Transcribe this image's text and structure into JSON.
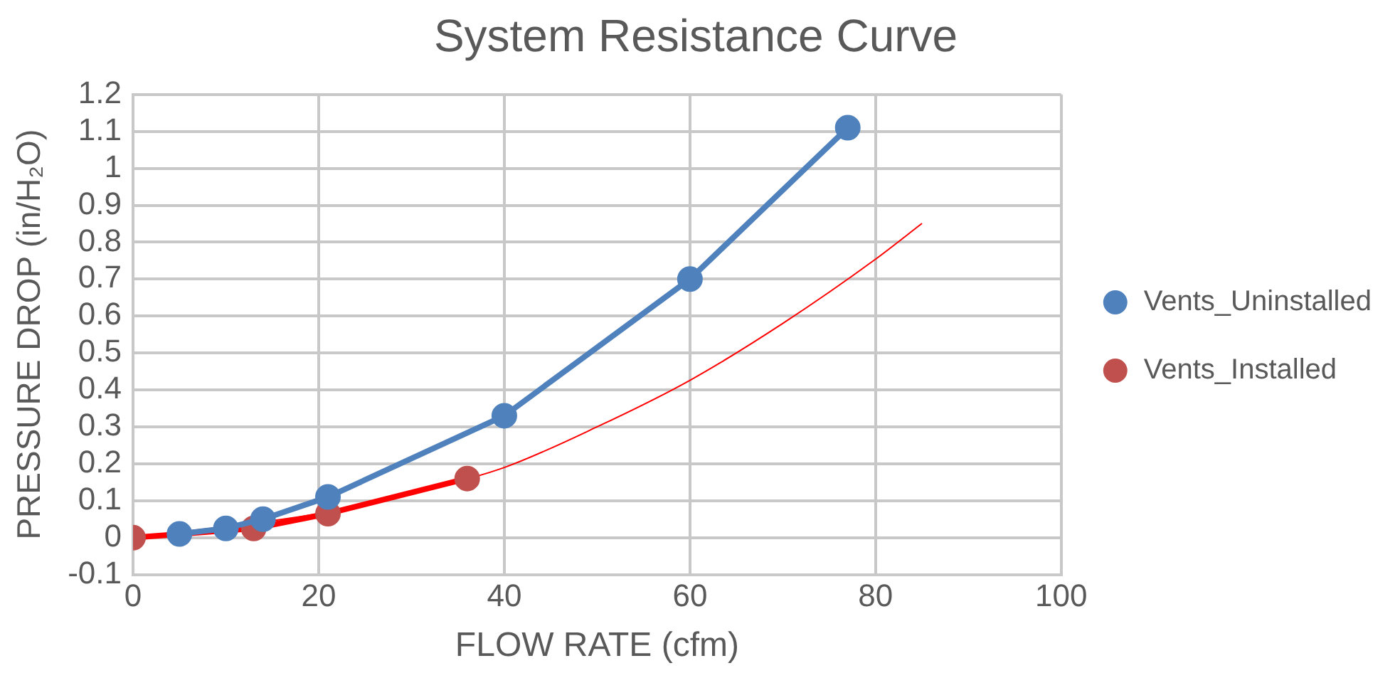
{
  "chart_data": {
    "type": "line",
    "title": "System Resistance Curve",
    "xlabel": "FLOW RATE (cfm)",
    "ylabel": "PRESSURE DROP (in/H₂O)",
    "xlim": [
      0,
      100
    ],
    "xticks": [
      0,
      20,
      40,
      60,
      80,
      100
    ],
    "ylim": [
      -0.1,
      1.2
    ],
    "yticks": [
      -0.1,
      0,
      0.1,
      0.2,
      0.3,
      0.4,
      0.5,
      0.6,
      0.7,
      0.8,
      0.9,
      1,
      1.1,
      1.2
    ],
    "grid": true,
    "legend": "right",
    "marker": "circle",
    "line_style": "solid",
    "series": [
      {
        "name": "Vents_Uninstalled",
        "color": "#4f81bd",
        "x": [
          5,
          10,
          14,
          21,
          40,
          60,
          77
        ],
        "values": [
          0.01,
          0.025,
          0.05,
          0.11,
          0.33,
          0.7,
          1.11
        ]
      },
      {
        "name": "Vents_Installed",
        "color": "#ff0000",
        "colors": [
          "#c0504d",
          "#c0504d",
          "#c0504d",
          "#c0504d"
        ],
        "x": [
          0,
          13,
          21,
          36
        ],
        "values": [
          0,
          0.025,
          0.065,
          0.16
        ]
      },
      {
        "type": "line",
        "marker": "none",
        "color": "#ff0000",
        "x": [
          0,
          20,
          30,
          40,
          50,
          60,
          70,
          80,
          85
        ],
        "values": [
          0,
          0.065,
          0.12,
          0.19,
          0.3,
          0.426,
          0.58,
          0.754,
          0.851
        ]
      }
    ]
  }
}
